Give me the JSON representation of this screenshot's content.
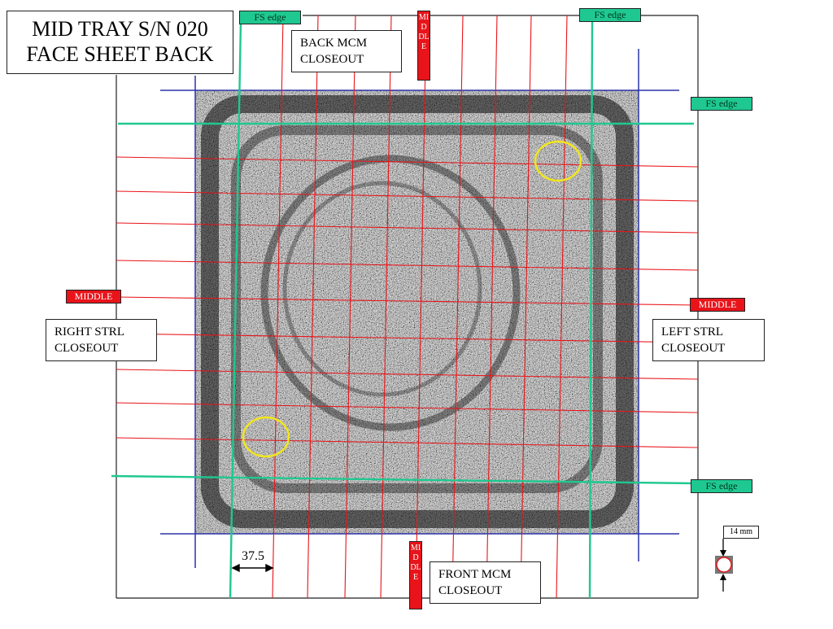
{
  "title": {
    "line1": "MID TRAY S/N 020",
    "line2": "FACE SHEET BACK"
  },
  "labels": {
    "back_mcm": {
      "line1": "BACK MCM",
      "line2": "CLOSEOUT"
    },
    "front_mcm": {
      "line1": "FRONT MCM",
      "line2": "CLOSEOUT"
    },
    "right_strl": {
      "line1": "RIGHT STRL",
      "line2": "CLOSEOUT"
    },
    "left_strl": {
      "line1": "LEFT  STRL",
      "line2": "CLOSEOUT"
    }
  },
  "tags": {
    "fs_edge": "FS edge",
    "middle": "MIDDLE"
  },
  "dimension": {
    "value": "37.5"
  },
  "scale": {
    "text": "14 mm"
  },
  "colors": {
    "grid_line": "#e8141a",
    "fs_line": "#1fc890",
    "panel_border": "#2b33a8",
    "highlight": "#f2e61a",
    "middle_tag": "#e8141a",
    "fs_tag": "#1fc890"
  }
}
